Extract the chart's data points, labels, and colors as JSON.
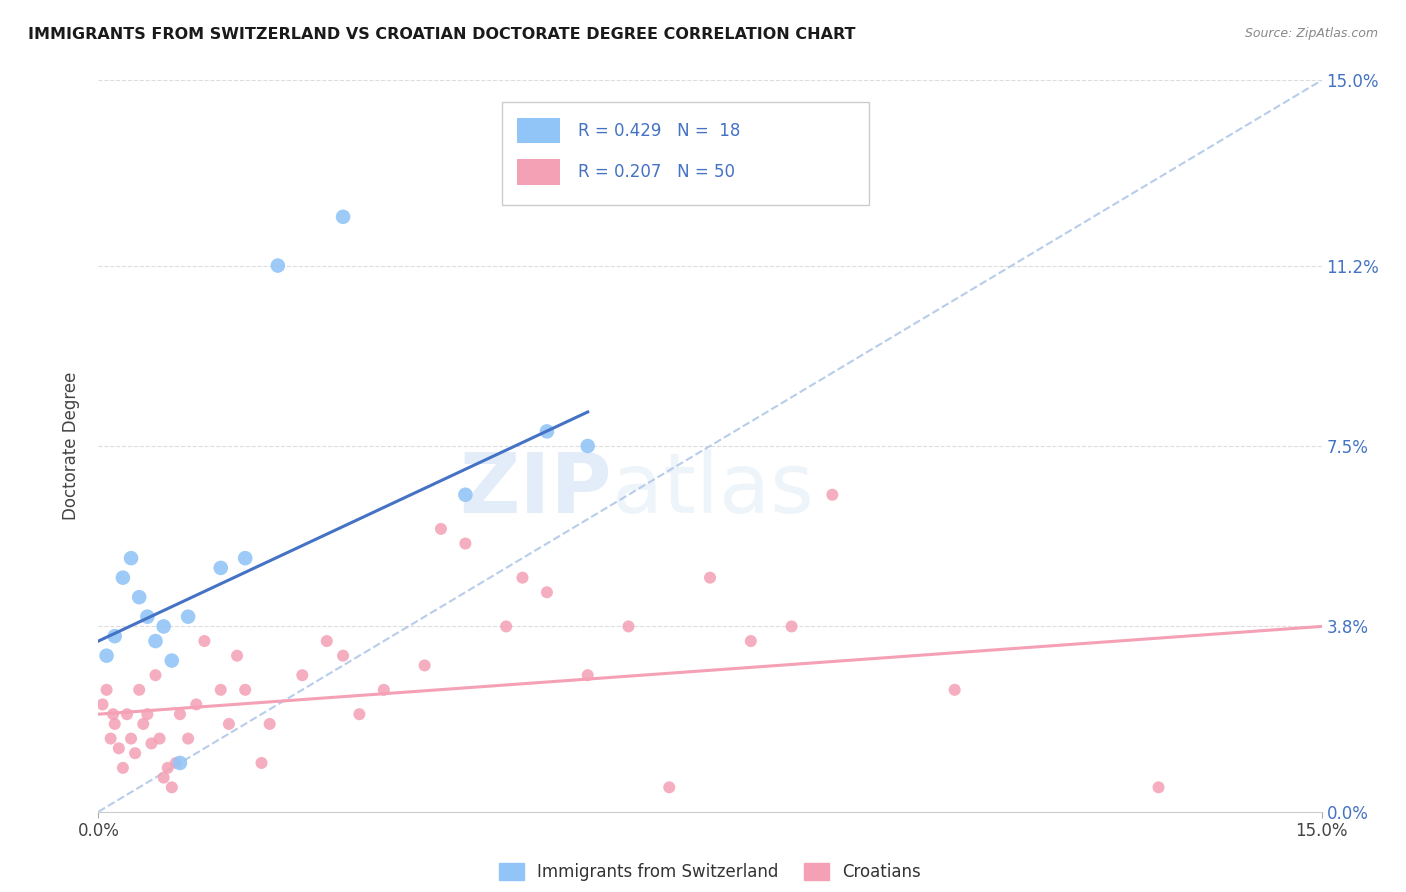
{
  "title": "IMMIGRANTS FROM SWITZERLAND VS CROATIAN DOCTORATE DEGREE CORRELATION CHART",
  "source": "Source: ZipAtlas.com",
  "ylabel": "Doctorate Degree",
  "ytick_values": [
    0.0,
    3.8,
    7.5,
    11.2,
    15.0
  ],
  "xrange": [
    0.0,
    15.0
  ],
  "yrange": [
    0.0,
    15.0
  ],
  "color_swiss": "#92c5f7",
  "color_croatian": "#f4a0b5",
  "color_blue_text": "#4472c4",
  "trendline_swiss_color": "#4472c4",
  "trendline_croatian_color": "#f4a0b5",
  "trendline_dashed_color": "#b0c8e8",
  "watermark_zip": "ZIP",
  "watermark_atlas": "atlas",
  "swiss_points": [
    [
      0.1,
      3.2
    ],
    [
      0.2,
      3.6
    ],
    [
      0.3,
      4.8
    ],
    [
      0.4,
      5.2
    ],
    [
      0.5,
      4.4
    ],
    [
      0.6,
      4.0
    ],
    [
      0.7,
      3.5
    ],
    [
      0.8,
      3.8
    ],
    [
      0.9,
      3.1
    ],
    [
      1.0,
      1.0
    ],
    [
      1.1,
      4.0
    ],
    [
      1.5,
      5.0
    ],
    [
      1.8,
      5.2
    ],
    [
      2.2,
      11.2
    ],
    [
      3.0,
      12.2
    ],
    [
      4.5,
      6.5
    ],
    [
      5.5,
      7.8
    ],
    [
      6.0,
      7.5
    ]
  ],
  "croatian_points": [
    [
      0.05,
      2.2
    ],
    [
      0.1,
      2.5
    ],
    [
      0.15,
      1.5
    ],
    [
      0.18,
      2.0
    ],
    [
      0.2,
      1.8
    ],
    [
      0.25,
      1.3
    ],
    [
      0.3,
      0.9
    ],
    [
      0.35,
      2.0
    ],
    [
      0.4,
      1.5
    ],
    [
      0.45,
      1.2
    ],
    [
      0.5,
      2.5
    ],
    [
      0.55,
      1.8
    ],
    [
      0.6,
      2.0
    ],
    [
      0.65,
      1.4
    ],
    [
      0.7,
      2.8
    ],
    [
      0.75,
      1.5
    ],
    [
      0.8,
      0.7
    ],
    [
      0.85,
      0.9
    ],
    [
      0.9,
      0.5
    ],
    [
      0.95,
      1.0
    ],
    [
      1.0,
      2.0
    ],
    [
      1.1,
      1.5
    ],
    [
      1.2,
      2.2
    ],
    [
      1.3,
      3.5
    ],
    [
      1.5,
      2.5
    ],
    [
      1.6,
      1.8
    ],
    [
      1.7,
      3.2
    ],
    [
      1.8,
      2.5
    ],
    [
      2.0,
      1.0
    ],
    [
      2.1,
      1.8
    ],
    [
      2.5,
      2.8
    ],
    [
      2.8,
      3.5
    ],
    [
      3.0,
      3.2
    ],
    [
      3.2,
      2.0
    ],
    [
      3.5,
      2.5
    ],
    [
      4.0,
      3.0
    ],
    [
      4.2,
      5.8
    ],
    [
      4.5,
      5.5
    ],
    [
      5.0,
      3.8
    ],
    [
      5.2,
      4.8
    ],
    [
      5.5,
      4.5
    ],
    [
      6.0,
      2.8
    ],
    [
      6.5,
      3.8
    ],
    [
      7.0,
      0.5
    ],
    [
      7.5,
      4.8
    ],
    [
      8.0,
      3.5
    ],
    [
      8.5,
      3.8
    ],
    [
      9.0,
      6.5
    ],
    [
      10.5,
      2.5
    ],
    [
      13.0,
      0.5
    ]
  ],
  "swiss_trend": [
    0.0,
    3.5,
    6.0,
    8.2
  ],
  "croatian_trend": [
    0.0,
    2.0,
    15.0,
    3.8
  ]
}
